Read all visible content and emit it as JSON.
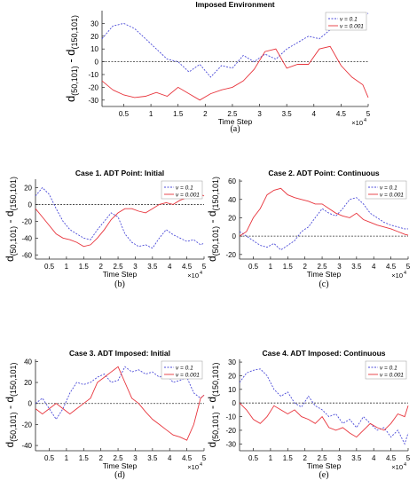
{
  "figure": {
    "legend_labels": [
      "ν = 0.1",
      "ν = 0.001"
    ],
    "xlabel": "Time Step",
    "ylabel_parts": [
      "d",
      "(50,101)",
      " - d",
      "(150,101)"
    ],
    "exponent": "×10",
    "exponent_power": "4",
    "colors": {
      "series_01": "#4a4ad8",
      "series_0001": "#e8343c",
      "zero_line": "#333333"
    }
  },
  "chart_data": [
    {
      "type": "line",
      "title": "Imposed Environment",
      "caption": "(a)",
      "xticks": [
        0.5,
        1,
        1.5,
        2,
        2.5,
        3,
        3.5,
        4,
        4.5,
        5
      ],
      "yticks": [
        -30,
        -20,
        -10,
        0,
        10,
        20,
        30
      ],
      "xlim": [
        0.1,
        5
      ],
      "ylim": [
        -35,
        40
      ],
      "x": [
        0.1,
        0.3,
        0.5,
        0.7,
        0.9,
        1.1,
        1.3,
        1.5,
        1.7,
        1.9,
        2.1,
        2.3,
        2.5,
        2.7,
        2.9,
        3.1,
        3.3,
        3.5,
        3.7,
        3.9,
        4.1,
        4.3,
        4.5,
        4.7,
        4.9,
        5.0
      ],
      "series": [
        {
          "name": "ν = 0.1",
          "values": [
            18,
            28,
            30,
            26,
            18,
            10,
            2,
            0,
            -8,
            -2,
            -12,
            -3,
            -5,
            5,
            0,
            6,
            2,
            10,
            15,
            20,
            18,
            25,
            26,
            30,
            35,
            38
          ]
        },
        {
          "name": "ν = 0.001",
          "values": [
            -15,
            -22,
            -26,
            -28,
            -27,
            -24,
            -27,
            -20,
            -25,
            -30,
            -25,
            -22,
            -20,
            -15,
            -6,
            8,
            10,
            -5,
            -2,
            -2,
            10,
            12,
            -3,
            -12,
            -18,
            -28
          ]
        }
      ]
    },
    {
      "type": "line",
      "title": "Case 1. ADT Point: Initial",
      "caption": "(b)",
      "xticks": [
        0.5,
        1,
        1.5,
        2,
        2.5,
        3,
        3.5,
        4,
        4.5,
        5
      ],
      "yticks": [
        -60,
        -40,
        -20,
        0,
        20
      ],
      "xlim": [
        0.1,
        5
      ],
      "ylim": [
        -65,
        30
      ],
      "x": [
        0.1,
        0.3,
        0.5,
        0.7,
        0.9,
        1.1,
        1.3,
        1.5,
        1.7,
        1.9,
        2.1,
        2.3,
        2.5,
        2.7,
        2.9,
        3.1,
        3.3,
        3.5,
        3.7,
        3.9,
        4.1,
        4.3,
        4.5,
        4.7,
        4.9,
        5.0
      ],
      "series": [
        {
          "name": "ν = 0.1",
          "values": [
            10,
            20,
            12,
            -5,
            -20,
            -30,
            -35,
            -40,
            -42,
            -30,
            -20,
            -10,
            -15,
            -35,
            -45,
            -50,
            -48,
            -52,
            -40,
            -30,
            -36,
            -40,
            -44,
            -42,
            -48,
            -46
          ]
        },
        {
          "name": "ν = 0.001",
          "values": [
            -5,
            -15,
            -25,
            -35,
            -40,
            -42,
            -45,
            -50,
            -48,
            -40,
            -30,
            -18,
            -10,
            -5,
            -5,
            -8,
            -10,
            -5,
            0,
            2,
            0,
            5,
            8,
            10,
            12,
            10
          ]
        }
      ]
    },
    {
      "type": "line",
      "title": "Case 2. ADT Point: Continuous",
      "caption": "(c)",
      "xticks": [
        0.5,
        1,
        1.5,
        2,
        2.5,
        3,
        3.5,
        4,
        4.5,
        5
      ],
      "yticks": [
        -20,
        0,
        20,
        40,
        60
      ],
      "xlim": [
        0.1,
        5
      ],
      "ylim": [
        -25,
        62
      ],
      "x": [
        0.1,
        0.3,
        0.5,
        0.7,
        0.9,
        1.1,
        1.3,
        1.5,
        1.7,
        1.9,
        2.1,
        2.3,
        2.5,
        2.7,
        2.9,
        3.1,
        3.3,
        3.5,
        3.7,
        3.9,
        4.1,
        4.3,
        4.5,
        4.7,
        4.9,
        5.0
      ],
      "series": [
        {
          "name": "ν = 0.1",
          "values": [
            5,
            0,
            -5,
            -10,
            -12,
            -8,
            -15,
            -10,
            -5,
            5,
            10,
            20,
            30,
            25,
            22,
            30,
            40,
            42,
            35,
            25,
            20,
            15,
            12,
            10,
            8,
            8
          ]
        },
        {
          "name": "ν = 0.001",
          "values": [
            0,
            5,
            20,
            30,
            45,
            50,
            52,
            45,
            42,
            40,
            38,
            35,
            35,
            30,
            25,
            22,
            20,
            25,
            18,
            15,
            12,
            10,
            8,
            5,
            2,
            1
          ]
        }
      ]
    },
    {
      "type": "line",
      "title": "Case 3. ADT Imposed: Initial",
      "caption": "(d)",
      "xticks": [
        0.5,
        1,
        1.5,
        2,
        2.5,
        3,
        3.5,
        4,
        4.5,
        5
      ],
      "yticks": [
        -40,
        -20,
        0,
        20,
        40
      ],
      "xlim": [
        0.1,
        5
      ],
      "ylim": [
        -45,
        42
      ],
      "x": [
        0.1,
        0.3,
        0.5,
        0.7,
        0.9,
        1.1,
        1.3,
        1.5,
        1.7,
        1.9,
        2.1,
        2.3,
        2.5,
        2.7,
        2.9,
        3.1,
        3.3,
        3.5,
        3.7,
        3.9,
        4.1,
        4.3,
        4.5,
        4.7,
        4.9,
        5.0
      ],
      "series": [
        {
          "name": "ν = 0.1",
          "values": [
            0,
            5,
            -5,
            -15,
            -5,
            10,
            20,
            18,
            20,
            25,
            28,
            20,
            22,
            35,
            30,
            32,
            28,
            30,
            25,
            28,
            20,
            22,
            25,
            10,
            5,
            8
          ]
        },
        {
          "name": "ν = 0.001",
          "values": [
            -5,
            -10,
            -5,
            0,
            -5,
            -10,
            -5,
            0,
            5,
            20,
            25,
            30,
            35,
            20,
            5,
            0,
            -8,
            -15,
            -20,
            -25,
            -30,
            -32,
            -35,
            -20,
            5,
            8
          ]
        }
      ]
    },
    {
      "type": "line",
      "title": "Case 4. ADT Imposed: Continuous",
      "caption": "(e)",
      "xticks": [
        0.5,
        1,
        1.5,
        2,
        2.5,
        3,
        3.5,
        4,
        4.5,
        5
      ],
      "yticks": [
        -30,
        -20,
        -10,
        0,
        10,
        20,
        30
      ],
      "xlim": [
        0.1,
        5
      ],
      "ylim": [
        -35,
        32
      ],
      "x": [
        0.1,
        0.3,
        0.5,
        0.7,
        0.9,
        1.1,
        1.3,
        1.5,
        1.7,
        1.9,
        2.1,
        2.3,
        2.5,
        2.7,
        2.9,
        3.1,
        3.3,
        3.5,
        3.7,
        3.9,
        4.1,
        4.3,
        4.5,
        4.7,
        4.9,
        5.0
      ],
      "series": [
        {
          "name": "ν = 0.1",
          "values": [
            15,
            22,
            24,
            25,
            20,
            10,
            5,
            8,
            0,
            -3,
            5,
            -2,
            -5,
            -10,
            -8,
            -15,
            -12,
            -18,
            -10,
            -15,
            -20,
            -18,
            -25,
            -20,
            -30,
            -22
          ]
        },
        {
          "name": "ν = 0.001",
          "values": [
            0,
            -5,
            -12,
            -15,
            -10,
            -2,
            -5,
            -8,
            -5,
            -10,
            -12,
            -15,
            -10,
            -18,
            -20,
            -18,
            -22,
            -25,
            -20,
            -15,
            -18,
            -20,
            -15,
            -8,
            -10,
            -2
          ]
        }
      ]
    }
  ]
}
